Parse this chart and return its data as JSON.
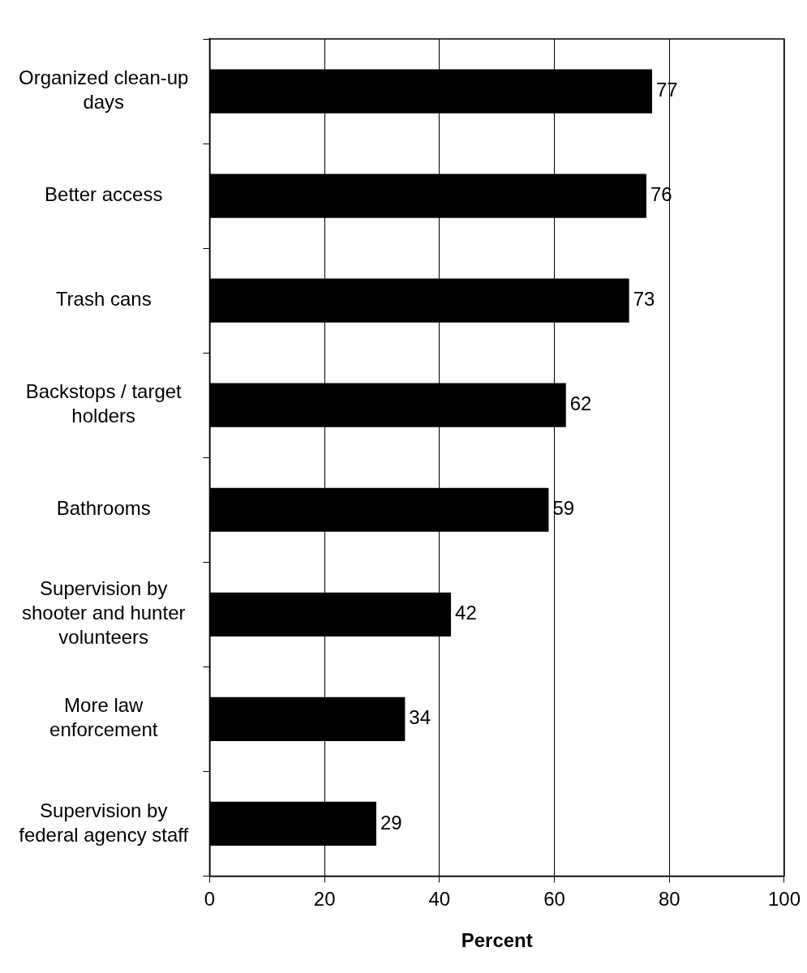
{
  "chart_data": {
    "type": "bar",
    "orientation": "horizontal",
    "xlabel": "Percent",
    "categories": [
      "Organized clean-up days",
      "Better access",
      "Trash cans",
      "Backstops / target holders",
      "Bathrooms",
      "Supervision by shooter and hunter volunteers",
      "More law enforcement",
      "Supervision by federal agency staff"
    ],
    "values": [
      77,
      76,
      73,
      62,
      59,
      42,
      34,
      29
    ],
    "color": "#000000",
    "xlim": [
      0,
      100
    ],
    "xticks": [
      0,
      20,
      40,
      60,
      80,
      100
    ],
    "grid": "x",
    "data_labels": true
  }
}
